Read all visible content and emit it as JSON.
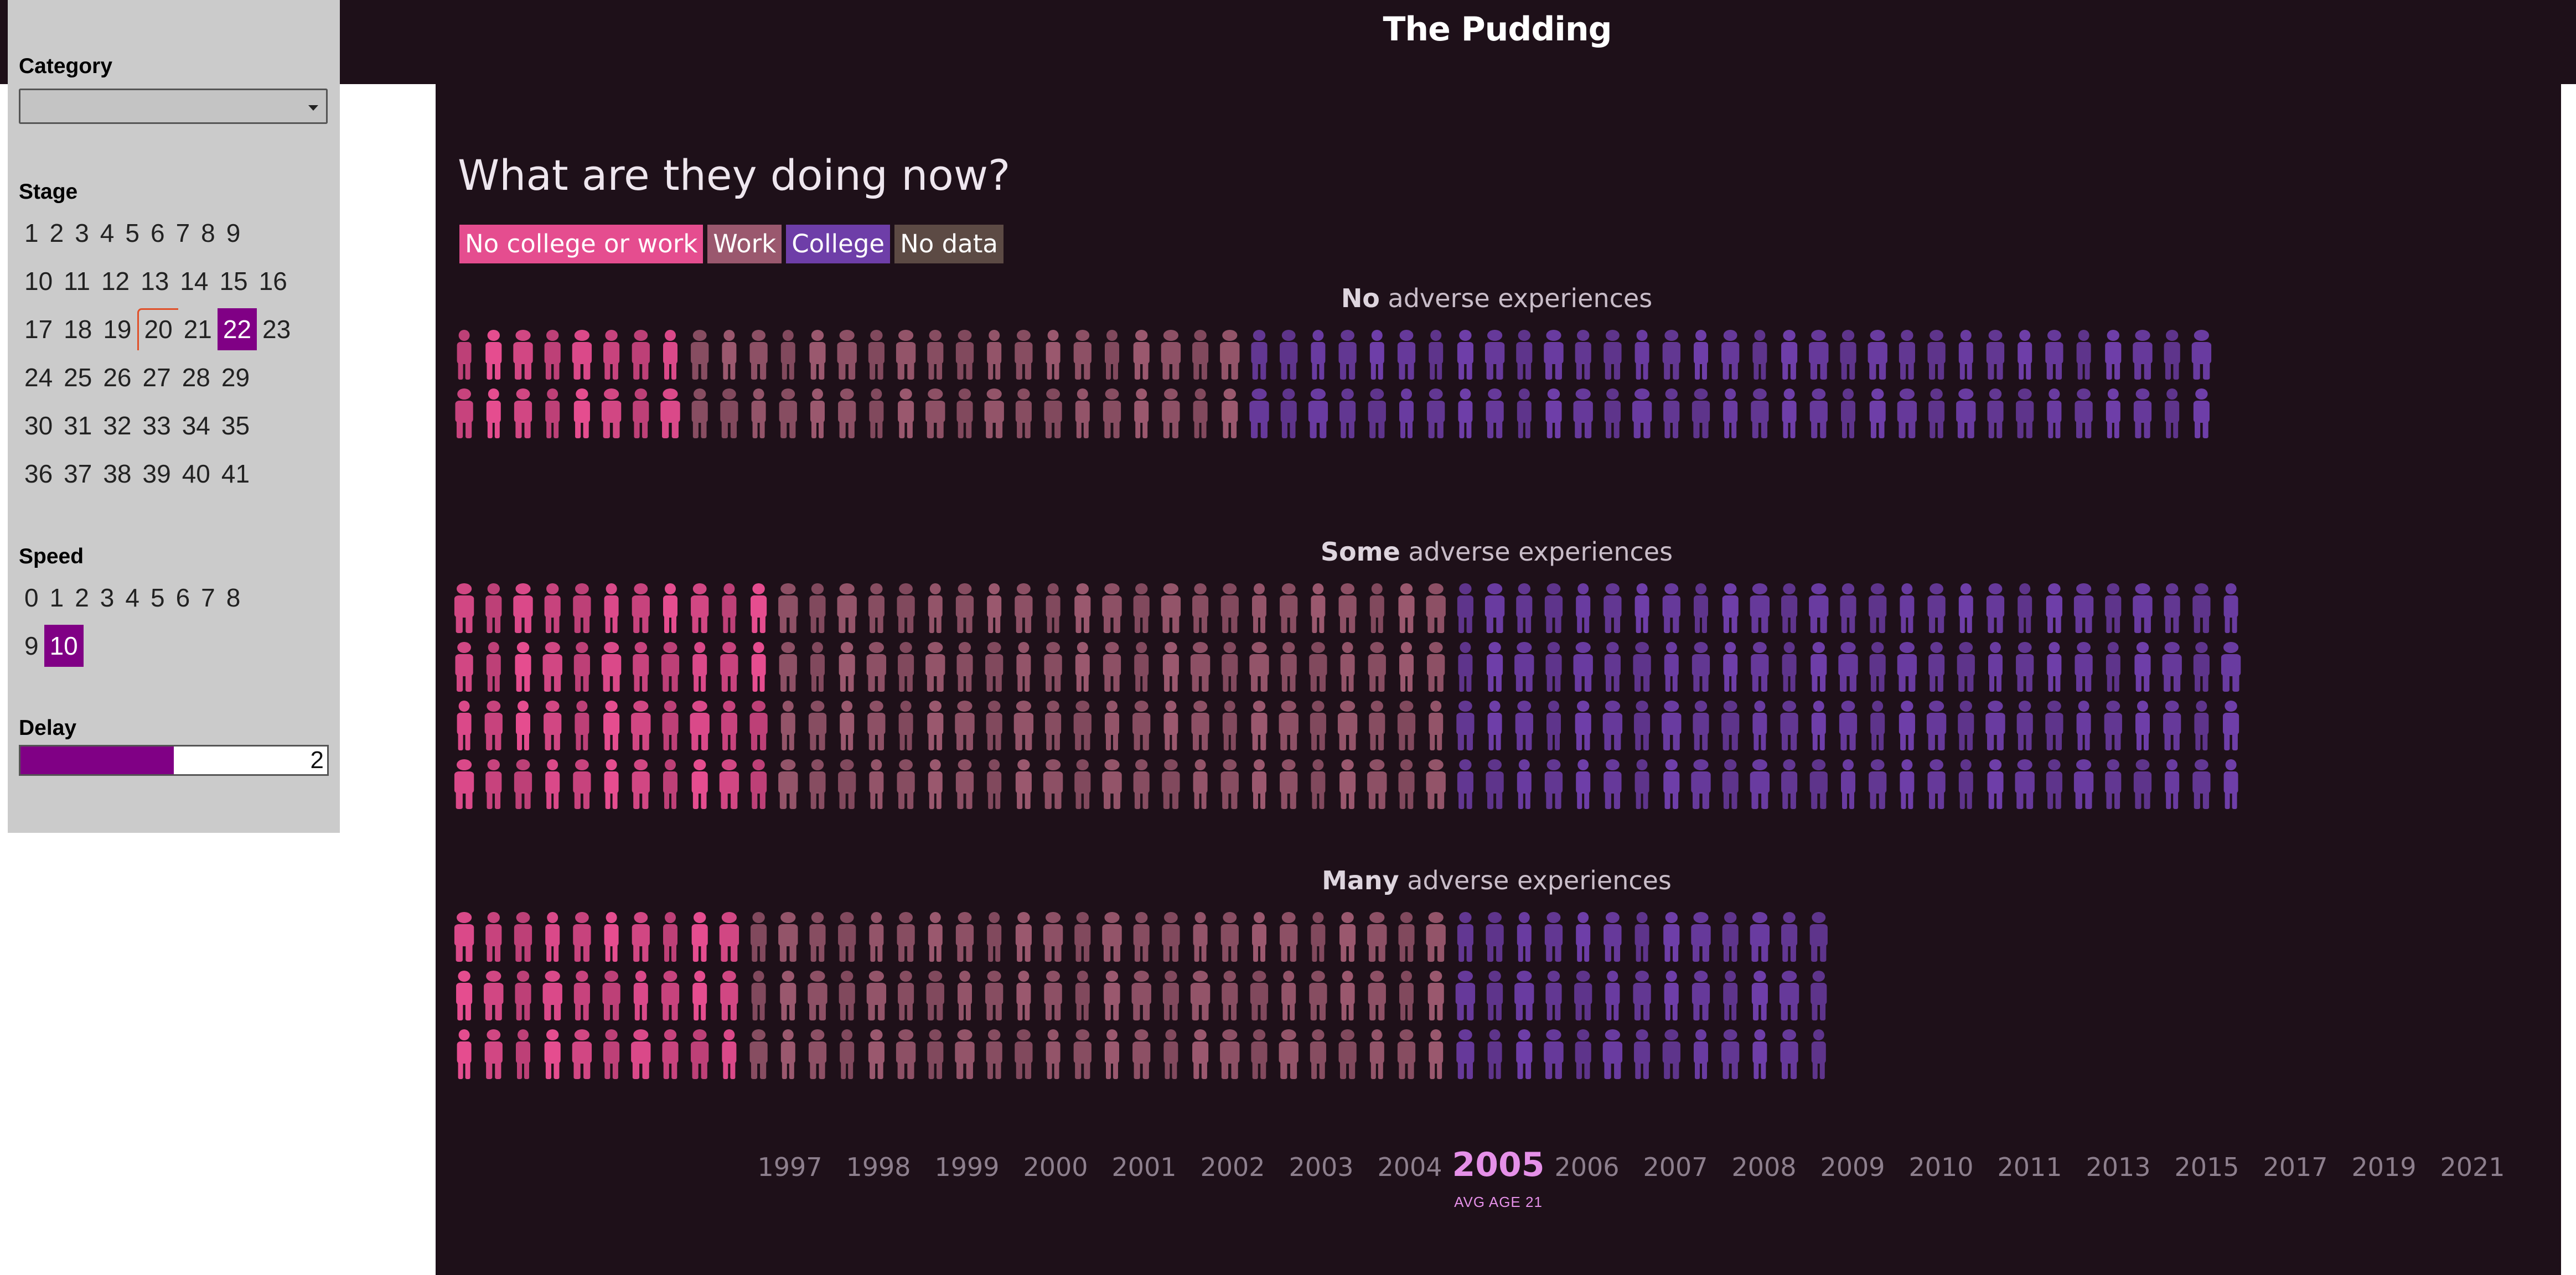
{
  "header": {
    "brand": "The Pudding"
  },
  "main": {
    "title": "What are they doing now?",
    "legend": [
      {
        "label": "No college or work",
        "color": "#e54d8f"
      },
      {
        "label": "Work",
        "color": "#9a586e"
      },
      {
        "label": "College",
        "color": "#6e3ea8"
      },
      {
        "label": "No data",
        "color": "#5c4a44"
      }
    ],
    "groups": [
      {
        "label_bold": "No",
        "label_rest": " adverse experiences",
        "columns": 60,
        "rows": 2,
        "breakdown": {
          "no_college_or_work": 8,
          "work": 19,
          "college": 33
        }
      },
      {
        "label_bold": "Some",
        "label_rest": " adverse experiences",
        "columns": 61,
        "rows": 4,
        "breakdown": {
          "no_college_or_work": 11,
          "work": 23,
          "college": 27
        }
      },
      {
        "label_bold": "Many",
        "label_rest": " adverse experiences",
        "columns": 47,
        "rows": 3,
        "breakdown": {
          "no_college_or_work": 10,
          "work": 24,
          "college": 13
        }
      }
    ],
    "timeline": {
      "years": [
        "1997",
        "1998",
        "1999",
        "2000",
        "2001",
        "2002",
        "2003",
        "2004",
        "2005",
        "2006",
        "2007",
        "2008",
        "2009",
        "2010",
        "2011",
        "2013",
        "2015",
        "2017",
        "2019",
        "2021"
      ],
      "active_year": "2005",
      "active_caption": "AVG AGE 21"
    }
  },
  "controls": {
    "category": {
      "label": "Category",
      "value": ""
    },
    "stage": {
      "label": "Stage",
      "rows": [
        [
          "1",
          "2",
          "3",
          "4",
          "5",
          "6",
          "7",
          "8",
          "9"
        ],
        [
          "10",
          "11",
          "12",
          "13",
          "14",
          "15",
          "16"
        ],
        [
          "17",
          "18",
          "19",
          "20",
          "21",
          "22",
          "23"
        ],
        [
          "24",
          "25",
          "26",
          "27",
          "28",
          "29"
        ],
        [
          "30",
          "31",
          "32",
          "33",
          "34",
          "35"
        ],
        [
          "36",
          "37",
          "38",
          "39",
          "40",
          "41"
        ]
      ],
      "selected": "22",
      "hovered": "20"
    },
    "speed": {
      "label": "Speed",
      "rows": [
        [
          "0",
          "1",
          "2",
          "3",
          "4",
          "5",
          "6",
          "7",
          "8"
        ],
        [
          "9",
          "10"
        ]
      ],
      "selected": "10"
    },
    "delay": {
      "label": "Delay",
      "value": "2",
      "fraction": 0.5
    }
  }
}
